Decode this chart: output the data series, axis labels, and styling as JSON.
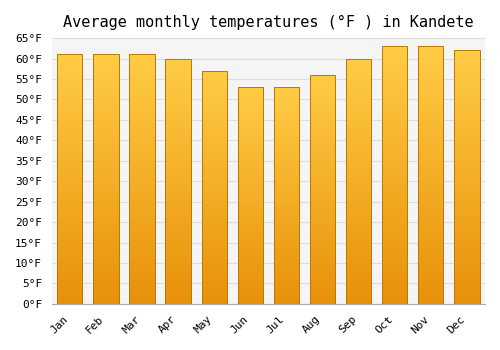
{
  "title": "Average monthly temperatures (°F ) in Kandete",
  "months": [
    "Jan",
    "Feb",
    "Mar",
    "Apr",
    "May",
    "Jun",
    "Jul",
    "Aug",
    "Sep",
    "Oct",
    "Nov",
    "Dec"
  ],
  "values": [
    61,
    61,
    61,
    60,
    57,
    53,
    53,
    56,
    60,
    63,
    63,
    62
  ],
  "bar_color_bottom": "#E8900A",
  "bar_color_top": "#FFCC44",
  "bar_edge_color": "#B87800",
  "background_color": "#FFFFFF",
  "plot_bg_color": "#F5F5F5",
  "grid_color": "#DDDDDD",
  "ylim": [
    0,
    65
  ],
  "ytick_step": 5,
  "title_fontsize": 11,
  "tick_fontsize": 8,
  "bar_width": 0.7
}
